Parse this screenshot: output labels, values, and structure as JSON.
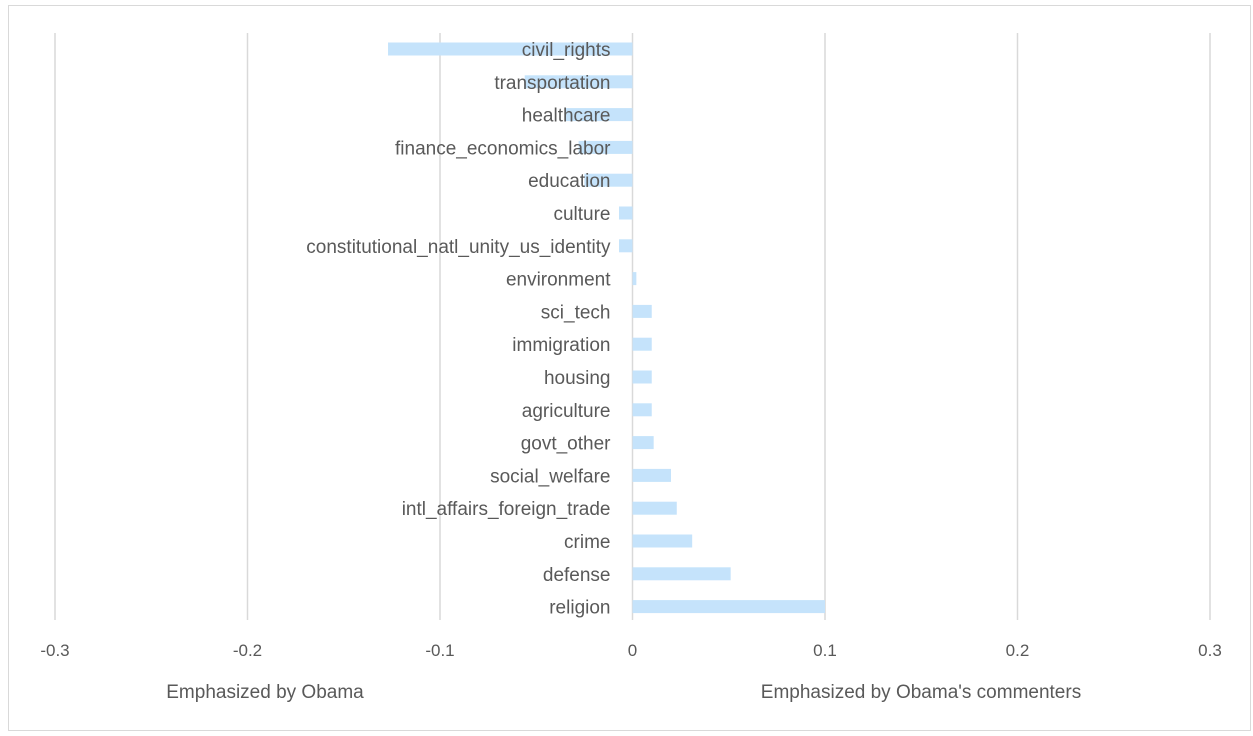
{
  "chart_data": {
    "type": "bar",
    "orientation": "horizontal",
    "categories": [
      "civil_rights",
      "transportation",
      "healthcare",
      "finance_economics_labor",
      "education",
      "culture",
      "constitutional_natl_unity_us_identity",
      "environment",
      "sci_tech",
      "immigration",
      "housing",
      "agriculture",
      "govt_other",
      "social_welfare",
      "intl_affairs_foreign_trade",
      "crime",
      "defense",
      "religion"
    ],
    "values": [
      -0.127,
      -0.056,
      -0.035,
      -0.028,
      -0.025,
      -0.007,
      -0.007,
      0.002,
      0.01,
      0.01,
      0.01,
      0.01,
      0.011,
      0.02,
      0.023,
      0.031,
      0.051,
      0.1
    ],
    "xlim": [
      -0.3,
      0.3
    ],
    "xticks": [
      "-0.3",
      "-0.2",
      "-0.1",
      "0",
      "0.1",
      "0.2",
      "0.3"
    ],
    "xtick_values": [
      -0.3,
      -0.2,
      -0.1,
      0,
      0.1,
      0.2,
      0.3
    ],
    "grid": "vertical",
    "colors": {
      "bar": "#c5e3fb",
      "grid": "#d9d9d9",
      "text": "#595959"
    },
    "annotations": {
      "left": "Emphasized by Obama",
      "right": "Emphasized by Obama's commenters"
    }
  }
}
